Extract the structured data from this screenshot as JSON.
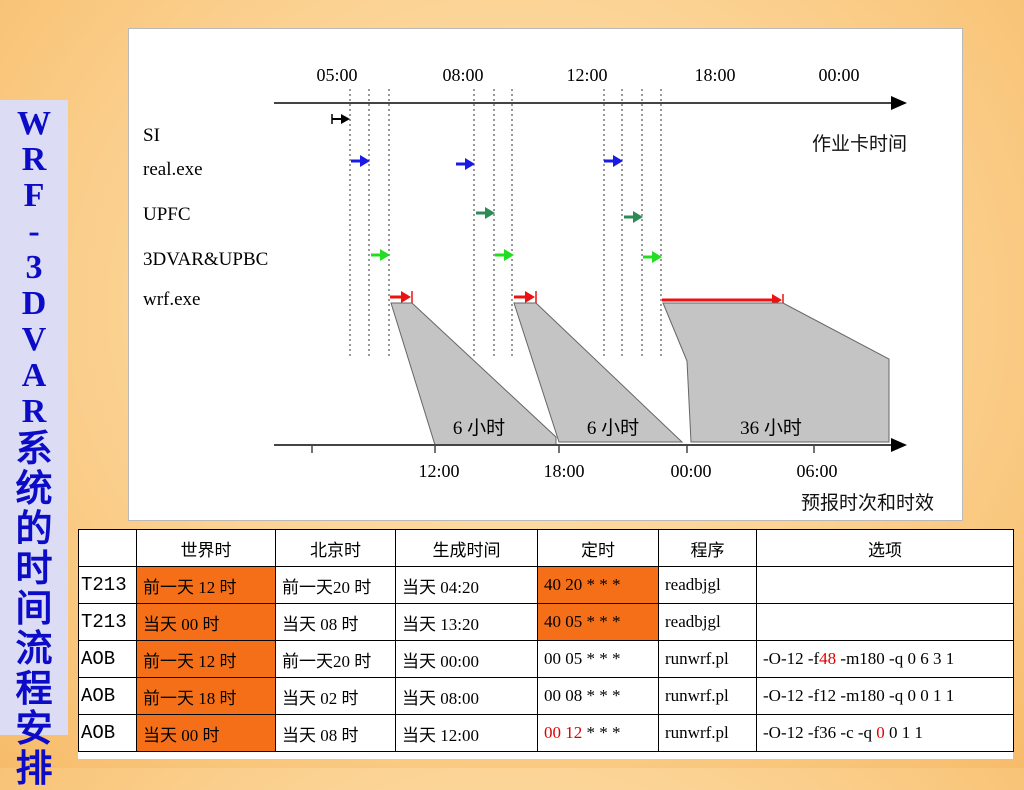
{
  "side_title": [
    "W",
    "R",
    "F",
    "-",
    "3",
    "D",
    "V",
    "A",
    "R",
    "系",
    "统",
    "的",
    "时",
    "间",
    "流",
    "程",
    "安",
    "排"
  ],
  "diagram": {
    "top_axis": {
      "ticks": [
        "05:00",
        "08:00",
        "12:00",
        "18:00",
        "00:00"
      ],
      "label": "作业卡时间"
    },
    "rows": [
      {
        "label": "SI",
        "arrow_color": "#000000"
      },
      {
        "label": "real.exe",
        "arrow_color": "#1a1ae6"
      },
      {
        "label": "UPFC",
        "arrow_color": "#2e8b57"
      },
      {
        "label": "3DVAR&UPBC",
        "arrow_color": "#22dd22"
      },
      {
        "label": "wrf.exe",
        "arrow_color": "#ee1111"
      }
    ],
    "forecast_windows": [
      "6 小时",
      "6 小时",
      "36 小时"
    ],
    "bottom_axis": {
      "ticks": [
        "12:00",
        "18:00",
        "00:00",
        "06:00"
      ],
      "label": "预报时次和时效"
    }
  },
  "table": {
    "headers": [
      "",
      "世界时",
      "北京时",
      "生成时间",
      "定时",
      "程序",
      "选项"
    ],
    "rows": [
      {
        "model": "T213",
        "utc": "前一天 12 时",
        "bjt": "前一天20 时",
        "gen": "当天 04:20",
        "cron": "40 20 * * *",
        "prog": "readbjgl",
        "opt": "",
        "utc_hl": true,
        "cron_hl": true
      },
      {
        "model": "T213",
        "utc": "当天 00 时",
        "bjt": "当天 08 时",
        "gen": "当天 13:20",
        "cron": "40 05 * * *",
        "prog": "readbjgl",
        "opt": "",
        "utc_hl": true,
        "cron_hl": true
      },
      {
        "model": "AOB",
        "utc": "前一天 12 时",
        "bjt": "前一天20 时",
        "gen": "当天 00:00",
        "cron": "00 05 * * *",
        "prog": "runwrf.pl",
        "opt": "-O-12 -f48 -m180 -q 0 6 3 1",
        "utc_hl": true,
        "cron_hl": false
      },
      {
        "model": "AOB",
        "utc": "前一天 18 时",
        "bjt": "当天 02 时",
        "gen": "当天 08:00",
        "cron": "00 08 * * *",
        "prog": "runwrf.pl",
        "opt": "-O-12 -f12 -m180 -q 0 0 1 1",
        "utc_hl": true,
        "cron_hl": false
      },
      {
        "model": "AOB",
        "utc": "当天 00 时",
        "bjt": "当天 08 时",
        "gen": "当天 12:00",
        "cron": "00 12 * * *",
        "prog": "runwrf.pl",
        "opt": "-O-12 -f36 -c        -q 0 0 1 1",
        "utc_hl": true,
        "cron_hl": false
      }
    ],
    "red_fragments": {
      "row2_opt": "48",
      "row4_cron": "00 12",
      "row4_opt": "0"
    }
  }
}
